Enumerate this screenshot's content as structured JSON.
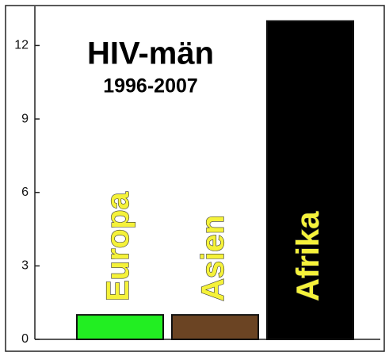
{
  "chart_data": {
    "type": "bar",
    "title": "HIV-män",
    "subtitle": "1996-2007",
    "categories": [
      "Europa",
      "Asien",
      "Afrika"
    ],
    "values": [
      1,
      1,
      13
    ],
    "colors": [
      "#22ee22",
      "#6b4423",
      "#000000"
    ],
    "ylim": [
      0,
      13.6
    ],
    "yticks": [
      0,
      3,
      6,
      9,
      12
    ]
  }
}
